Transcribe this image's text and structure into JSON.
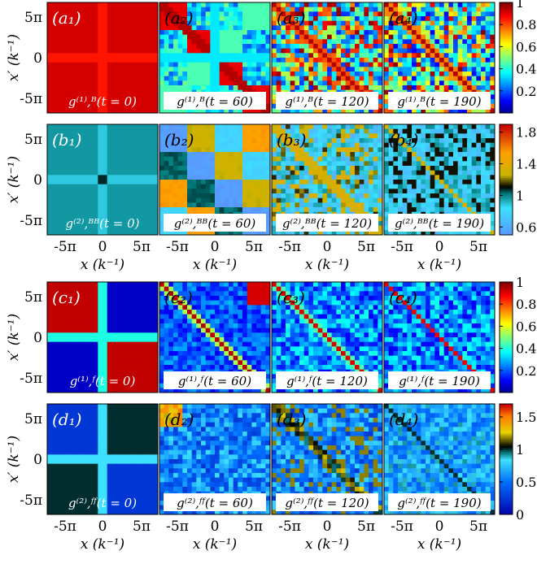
{
  "chart_data": {
    "type": "heatmap",
    "axis_ticks": [
      "-5π",
      "0",
      "5π"
    ],
    "ytick_labels": [
      "5π",
      "0",
      "-5π"
    ],
    "xlabel": "x (k⁻¹)",
    "ylabel": "x′ (k⁻¹)",
    "rows": [
      {
        "colorbar": {
          "min": 0.0,
          "max": 1.0,
          "ticks": [
            "1",
            "0.8",
            "0.6",
            "0.4",
            "0.2"
          ],
          "tick_values": [
            1,
            0.8,
            0.6,
            0.4,
            0.2
          ],
          "colormap": "jet"
        },
        "panels": [
          {
            "tag": "(a₁)",
            "label": "g⁽¹⁾,ᴮ(t = 0)",
            "pattern": "uniform_high"
          },
          {
            "tag": "(a₂)",
            "label": "g⁽¹⁾,ᴮ(t = 60)",
            "pattern": "diag_blocks_coarse"
          },
          {
            "tag": "(a₃)",
            "label": "g⁽¹⁾,ᴮ(t = 120)",
            "pattern": "diag_blocks_medium"
          },
          {
            "tag": "(a₄)",
            "label": "g⁽¹⁾,ᴮ(t = 190)",
            "pattern": "diag_blocks_fine"
          }
        ]
      },
      {
        "colorbar": {
          "min": 0.5,
          "max": 1.9,
          "ticks": [
            "1.8",
            "1.4",
            "1",
            "0.6"
          ],
          "tick_values": [
            1.8,
            1.4,
            1.0,
            0.6
          ],
          "colormap": "cyan-black-hot"
        },
        "panels": [
          {
            "tag": "(b₁)",
            "label": "g⁽²⁾,ᴮᴮ(t = 0)",
            "pattern": "cross_teal"
          },
          {
            "tag": "(b₂)",
            "label": "g⁽²⁾,ᴮᴮ(t = 60)",
            "pattern": "blocks_coarse"
          },
          {
            "tag": "(b₃)",
            "label": "g⁽²⁾,ᴮᴮ(t = 120)",
            "pattern": "blocks_medium_diag"
          },
          {
            "tag": "(b₄)",
            "label": "g⁽²⁾,ᴮᴮ(t = 190)",
            "pattern": "blocks_fine_diag"
          }
        ]
      },
      {
        "colorbar": {
          "min": 0.0,
          "max": 1.0,
          "ticks": [
            "1",
            "0.8",
            "0.6",
            "0.4",
            "0.2"
          ],
          "tick_values": [
            1,
            0.8,
            0.6,
            0.4,
            0.2
          ],
          "colormap": "jet"
        },
        "panels": [
          {
            "tag": "(c₁)",
            "label": "g⁽¹⁾,ᶠ(t = 0)",
            "pattern": "quadrant_cross"
          },
          {
            "tag": "(c₂)",
            "label": "g⁽¹⁾,ᶠ(t = 60)",
            "pattern": "diag_line_coarse"
          },
          {
            "tag": "(c₃)",
            "label": "g⁽¹⁾,ᶠ(t = 120)",
            "pattern": "diag_line_medium"
          },
          {
            "tag": "(c₄)",
            "label": "g⁽¹⁾,ᶠ(t = 190)",
            "pattern": "diag_line_fine"
          }
        ]
      },
      {
        "colorbar": {
          "min": 0.0,
          "max": 1.7,
          "ticks": [
            "1.5",
            "1",
            "0.5",
            "0"
          ],
          "tick_values": [
            1.5,
            1.0,
            0.5,
            0.0
          ],
          "colormap": "blue-black-hot"
        },
        "panels": [
          {
            "tag": "(d₁)",
            "label": "g⁽²⁾,ᶠᶠ(t = 0)",
            "pattern": "ff_cross"
          },
          {
            "tag": "(d₂)",
            "label": "g⁽²⁾,ᶠᶠ(t = 60)",
            "pattern": "ff_blocks_coarse"
          },
          {
            "tag": "(d₃)",
            "label": "g⁽²⁾,ᶠᶠ(t = 120)",
            "pattern": "ff_blocks_medium"
          },
          {
            "tag": "(d₄)",
            "label": "g⁽²⁾,ᶠᶠ(t = 190)",
            "pattern": "ff_blocks_fine"
          }
        ]
      }
    ]
  }
}
